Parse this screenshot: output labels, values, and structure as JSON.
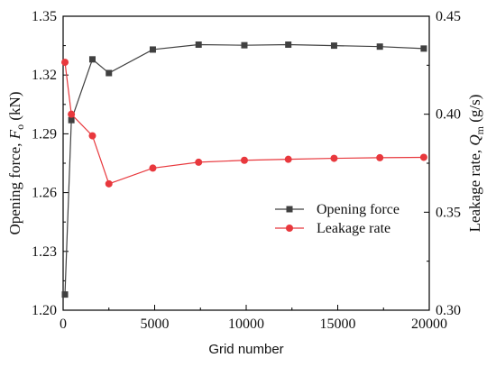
{
  "chart_data": {
    "type": "line",
    "xlabel": "Grid number",
    "x_ticks": [
      "0",
      "5000",
      "10000",
      "15000",
      "20000"
    ],
    "xlim": [
      0,
      20000
    ],
    "left_axis": {
      "label_main": "Opening force, ",
      "label_symbol": "F",
      "label_sub": "o",
      "label_unit": " (kN)",
      "ylim": [
        1.2,
        1.35
      ],
      "ticks": [
        "1.20",
        "1.23",
        "1.26",
        "1.29",
        "1.32",
        "1.35"
      ]
    },
    "right_axis": {
      "label_main": "Leakage rate, ",
      "label_symbol": "Q",
      "label_sub": "m",
      "label_unit": " (g/s)",
      "ylim": [
        0.3,
        0.45
      ],
      "ticks": [
        "0.30",
        "0.35",
        "0.40",
        "0.45"
      ]
    },
    "legend_position": "right-middle",
    "series": [
      {
        "name": "Opening force",
        "axis": "left",
        "color": "#404040",
        "marker": "square",
        "points": [
          [
            100,
            1.208
          ],
          [
            450,
            1.297
          ],
          [
            1600,
            1.328
          ],
          [
            2500,
            1.321
          ],
          [
            4900,
            1.333
          ],
          [
            7400,
            1.3355
          ],
          [
            9900,
            1.3352
          ],
          [
            12300,
            1.3355
          ],
          [
            14800,
            1.335
          ],
          [
            17300,
            1.3345
          ],
          [
            19700,
            1.3335
          ]
        ]
      },
      {
        "name": "Leakage rate",
        "axis": "right",
        "color": "#e8383d",
        "marker": "circle",
        "points": [
          [
            100,
            0.4265
          ],
          [
            450,
            0.4
          ],
          [
            1600,
            0.389
          ],
          [
            2500,
            0.3645
          ],
          [
            4900,
            0.3725
          ],
          [
            7400,
            0.3755
          ],
          [
            9900,
            0.3765
          ],
          [
            12300,
            0.377
          ],
          [
            14800,
            0.3775
          ],
          [
            17300,
            0.3778
          ],
          [
            19700,
            0.378
          ]
        ]
      }
    ]
  }
}
